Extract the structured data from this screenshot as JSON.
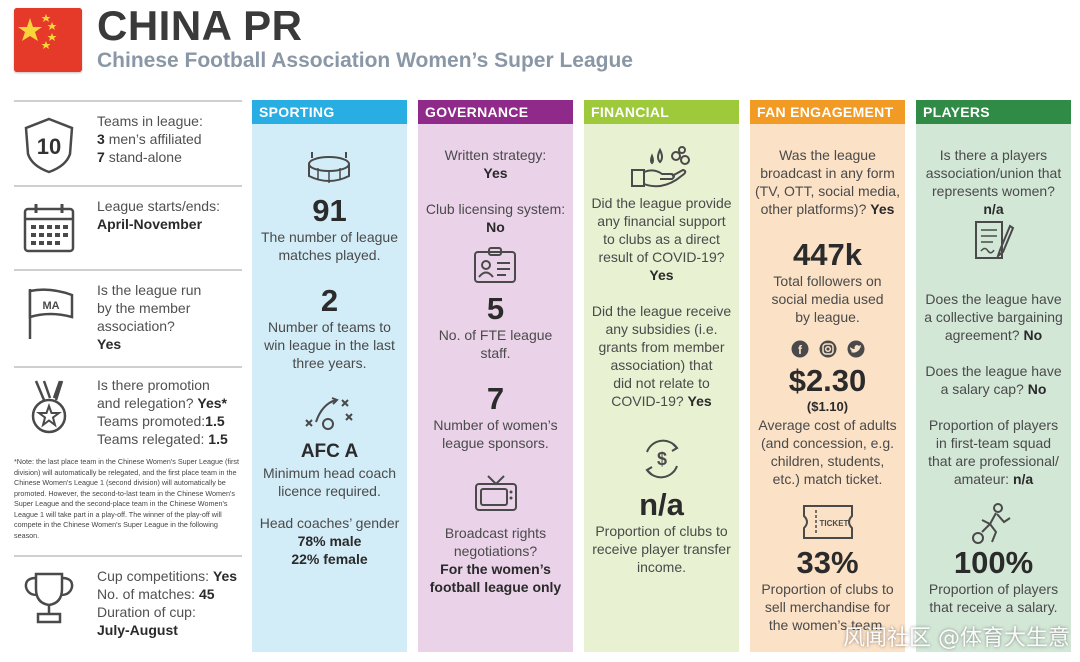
{
  "header": {
    "title": "CHINA PR",
    "subtitle": "Chinese Football Association Women’s Super League"
  },
  "colors": {
    "sporting": "#29aee3",
    "governance": "#8f2a8a",
    "financial": "#9dc93a",
    "fan_engagement": "#f29b24",
    "players": "#2f8b45",
    "flag_red": "#e53a2a",
    "flag_star": "#f7d53a"
  },
  "left": {
    "teams": {
      "badge": "10",
      "label": "Teams in league:",
      "men_count": "3",
      "men_text": "men’s affiliated",
      "standalone_count": "7",
      "standalone_text": "stand-alone"
    },
    "dates": {
      "label": "League starts/ends:",
      "value": "April-November"
    },
    "run": {
      "flag_text": "MA",
      "question_l1": "Is the league run",
      "question_l2": "by the member",
      "question_l3": "association?",
      "answer": "Yes"
    },
    "promotion": {
      "q1": "Is there promotion",
      "q2": "and relegation?",
      "q2_answer": "Yes*",
      "promoted_label": "Teams promoted:",
      "promoted_value": "1.5",
      "relegated_label": "Teams relegated:",
      "relegated_value": "1.5"
    },
    "note": "*Note: the last place team in the Chinese Women's Super League (first division) will automatically be relegated, and the first place team in the Chinese Women's League 1 (second division) will automatically be promoted. However, the second-to-last team in the Chinese Women's Super League and the second-place team in the Chinese Women's League 1 will take part in a play-off. The winner of the play-off will compete in the Chinese Women's Super League in the following season.",
    "cup": {
      "label": "Cup competitions:",
      "answer": "Yes",
      "matches_label": "No. of matches:",
      "matches_value": "45",
      "duration_label": "Duration of cup:",
      "duration_value": "July-August"
    }
  },
  "sporting": {
    "title": "SPORTING",
    "matches_value": "91",
    "matches_l1": "The number of league",
    "matches_l2": "matches played.",
    "winners_value": "2",
    "winners_l1": "Number of teams to",
    "winners_l2": "win league in the last",
    "winners_l3": "three years.",
    "licence_value": "AFC A",
    "licence_l1": "Minimum head coach",
    "licence_l2": "licence required.",
    "gender_label": "Head coaches’ gender",
    "gender_male": "78% male",
    "gender_female": "22% female"
  },
  "governance": {
    "title": "GOVERNANCE",
    "strategy_label": "Written strategy:",
    "strategy_value": "Yes",
    "licensing_label": "Club licensing system:",
    "licensing_value": "No",
    "fte_value": "5",
    "fte_l1": "No. of FTE league",
    "fte_l2": "staff.",
    "sponsors_value": "7",
    "sponsors_l1": "Number of women’s",
    "sponsors_l2": "league sponsors.",
    "broadcast_l1": "Broadcast rights",
    "broadcast_l2": "negotiations?",
    "broadcast_a1": "For the women’s",
    "broadcast_a2": "football league only"
  },
  "financial": {
    "title": "FINANCIAL",
    "support_l1": "Did the league provide",
    "support_l2": "any financial support",
    "support_l3": "to clubs as a direct",
    "support_l4": "result of COVID-19?",
    "support_answer": "Yes",
    "subsidy_l1": "Did the league receive",
    "subsidy_l2": "any subsidies (i.e.",
    "subsidy_l3": "grants from member",
    "subsidy_l4": "association) that",
    "subsidy_l5": "did not relate to",
    "subsidy_l6": "COVID-19?",
    "subsidy_answer": "Yes",
    "transfer_value": "n/a",
    "transfer_l1": "Proportion of clubs to",
    "transfer_l2": "receive player transfer",
    "transfer_l3": "income."
  },
  "fan": {
    "title": "FAN ENGAGEMENT",
    "broadcast_l1": "Was the league",
    "broadcast_l2": "broadcast in any form",
    "broadcast_l3": "(TV, OTT, social media,",
    "broadcast_l4": "other platforms)?",
    "broadcast_answer": "Yes",
    "followers_value": "447k",
    "followers_l1": "Total followers on",
    "followers_l2": "social media used",
    "followers_l3": "by league.",
    "price_value": "$2.30",
    "price_concession": "($1.10)",
    "price_l1": "Average cost of adults",
    "price_l2": "(and concession, e.g.",
    "price_l3": "children, students,",
    "price_l4": "etc.) match ticket.",
    "ticket_label": "TICKET",
    "merch_value": "33%",
    "merch_l1": "Proportion of clubs to",
    "merch_l2": "sell merchandise for",
    "merch_l3": "the women’s team."
  },
  "players": {
    "title": "PLAYERS",
    "union_l1": "Is there a players",
    "union_l2": "association/union that",
    "union_l3": "represents women?",
    "union_answer": "n/a",
    "cba_l1": "Does the league have",
    "cba_l2": "a collective bargaining",
    "cba_l3": "agreement?",
    "cba_answer": "No",
    "cap_l1": "Does the league have",
    "cap_l2": "a salary cap?",
    "cap_answer": "No",
    "pro_l1": "Proportion of players",
    "pro_l2": "in first-team squad",
    "pro_l3": "that are professional/",
    "pro_l4": "amateur:",
    "pro_answer": "n/a",
    "salary_value": "100%",
    "salary_l1": "Proportion of players",
    "salary_l2": "that receive a salary."
  },
  "watermark": "风闻社区 @体育大生意"
}
